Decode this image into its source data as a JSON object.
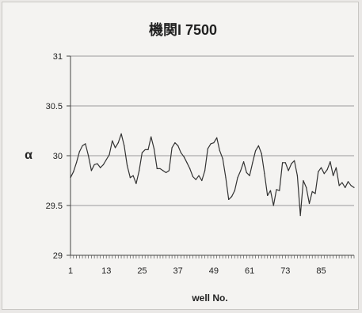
{
  "chart_data": {
    "type": "line",
    "title": "機関I 7500",
    "xlabel": "well No.",
    "ylabel": "α",
    "ylim": [
      29,
      31
    ],
    "yticks": [
      29,
      29.5,
      30,
      30.5,
      31
    ],
    "ytick_labels": [
      "29",
      "29.5",
      "30",
      "30.5",
      "31"
    ],
    "xlim": [
      1,
      96
    ],
    "xticks": [
      1,
      13,
      25,
      37,
      49,
      61,
      73,
      85
    ],
    "xtick_labels": [
      "1",
      "13",
      "25",
      "37",
      "49",
      "61",
      "73",
      "85"
    ],
    "grid": "horizontal",
    "legend": "none",
    "line_color": "#333333",
    "series": [
      {
        "x": [
          1,
          2,
          3,
          4,
          5,
          6,
          7,
          8,
          9,
          10,
          11,
          12,
          13,
          14,
          15,
          16,
          17,
          18,
          19,
          20,
          21,
          22,
          23,
          24,
          25,
          26,
          27,
          28,
          29,
          30,
          31,
          32,
          33,
          34,
          35,
          36,
          37,
          38,
          39,
          40,
          41,
          42,
          43,
          44,
          45,
          46,
          47,
          48,
          49,
          50,
          51,
          52,
          53,
          54,
          55,
          56,
          57,
          58,
          59,
          60,
          61,
          62,
          63,
          64,
          65,
          66,
          67,
          68,
          69,
          70,
          71,
          72,
          73,
          74,
          75,
          76,
          77,
          78,
          79,
          80,
          81,
          82,
          83,
          84,
          85,
          86,
          87,
          88,
          89,
          90,
          91,
          92,
          93,
          94,
          95,
          96
        ],
        "values": [
          29.78,
          29.84,
          29.93,
          30.04,
          30.1,
          30.12,
          30.0,
          29.85,
          29.91,
          29.92,
          29.88,
          29.91,
          29.96,
          30.01,
          30.15,
          30.08,
          30.13,
          30.22,
          30.1,
          29.9,
          29.78,
          29.8,
          29.72,
          29.85,
          30.03,
          30.06,
          30.06,
          30.19,
          30.07,
          29.87,
          29.87,
          29.85,
          29.83,
          29.85,
          30.08,
          30.13,
          30.1,
          30.03,
          29.99,
          29.93,
          29.87,
          29.79,
          29.76,
          29.8,
          29.75,
          29.85,
          30.07,
          30.12,
          30.13,
          30.18,
          30.05,
          29.97,
          29.78,
          29.56,
          29.59,
          29.65,
          29.78,
          29.85,
          29.94,
          29.83,
          29.8,
          29.93,
          30.05,
          30.1,
          30.02,
          29.82,
          29.6,
          29.65,
          29.5,
          29.66,
          29.65,
          29.93,
          29.93,
          29.85,
          29.92,
          29.95,
          29.8,
          29.4,
          29.75,
          29.68,
          29.52,
          29.64,
          29.62,
          29.84,
          29.88,
          29.82,
          29.86,
          29.94,
          29.8,
          29.88,
          29.7,
          29.73,
          29.68,
          29.74,
          29.7,
          29.68
        ]
      }
    ]
  }
}
